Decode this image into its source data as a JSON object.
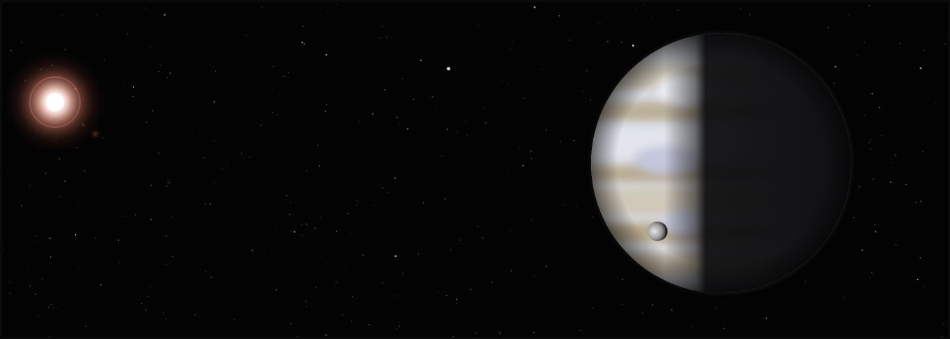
{
  "scene": {
    "description_kind": "space-illustration",
    "colors": {
      "background": "#030303",
      "star_core": "#ffffff",
      "star_halo": "#c8735f",
      "planet_light": "#dcdfe8",
      "planet_band": "#b9a88e",
      "planet_dark": "#0c0c0e",
      "moon": "#d6d6d6"
    },
    "objects": [
      {
        "name": "red-dwarf-star",
        "kind": "star"
      },
      {
        "name": "gas-giant-planet",
        "kind": "planet"
      },
      {
        "name": "moon",
        "kind": "moon"
      },
      {
        "name": "distant-moon",
        "kind": "moon"
      }
    ]
  }
}
